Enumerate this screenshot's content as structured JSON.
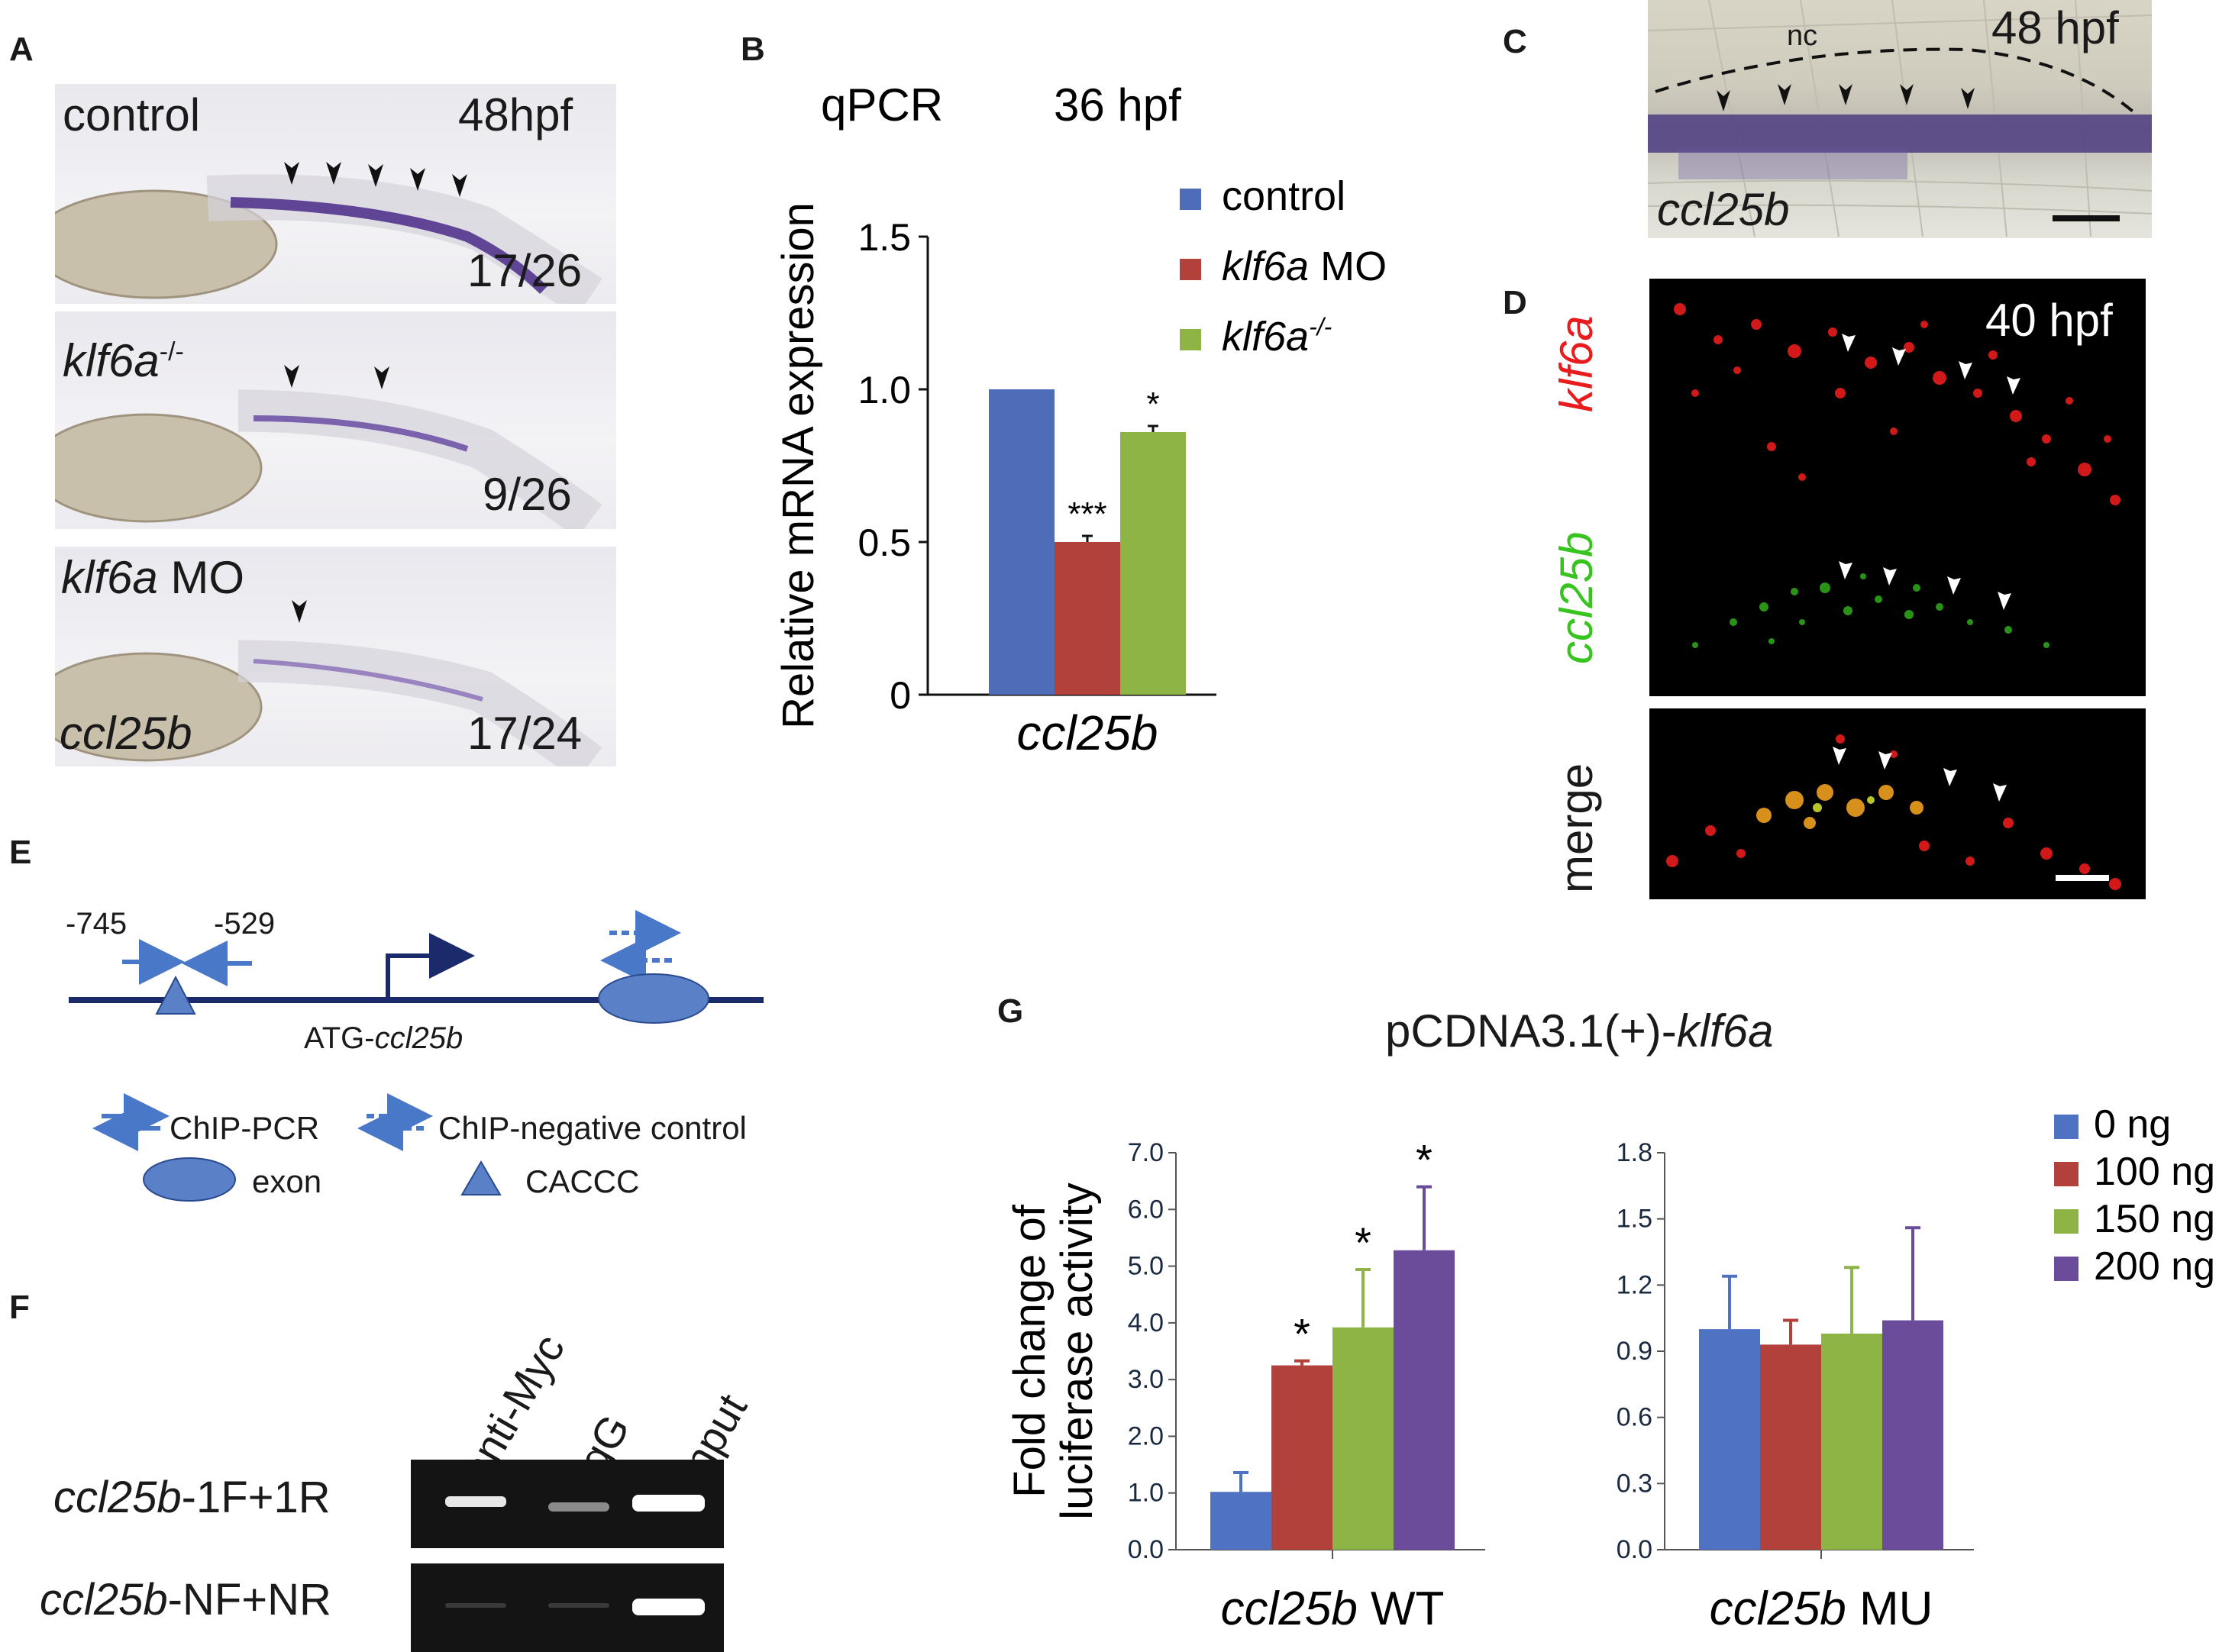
{
  "panelA": {
    "label": "A",
    "images": [
      {
        "genotype": "control",
        "stage": "48hpf",
        "count": "17/26"
      },
      {
        "genotype": "klf6a",
        "genotype_sup": "-/-",
        "count": "9/26"
      },
      {
        "genotype": "klf6a",
        "genotype_suffix": " MO",
        "gene": "ccl25b",
        "count": "17/24"
      }
    ]
  },
  "panelB": {
    "label": "B",
    "method": "qPCR",
    "stage": "36 hpf"
  },
  "panelC": {
    "label": "C",
    "stage": "48 hpf",
    "nc_label": "nc",
    "gene": "ccl25b"
  },
  "panelD": {
    "label": "D",
    "stage": "40 hpf",
    "rows": [
      "klf6a",
      "ccl25b",
      "merge"
    ],
    "colors": {
      "red": "#e81c1c",
      "green": "#37c41f"
    }
  },
  "panelE": {
    "label": "E",
    "pos1": "-745",
    "pos2": "-529",
    "gene_label_prefix": "ATG-",
    "gene_label": "ccl25b",
    "legend": {
      "chip_pcr": "ChIP-PCR",
      "chip_neg": "ChIP-negative control",
      "exon": "exon",
      "caccc": "CACCC"
    }
  },
  "panelF": {
    "label": "F",
    "lanes": [
      "anti-Myc",
      "IgG",
      "input"
    ],
    "rows": [
      {
        "gene": "ccl25b",
        "suffix": "-1F+1R"
      },
      {
        "gene": "ccl25b",
        "suffix": "-NF+NR"
      }
    ]
  },
  "panelG": {
    "label": "G",
    "construct_prefix": "pCDNA3.1(+)-",
    "construct_gene": "klf6a"
  },
  "chart_data": [
    {
      "id": "B",
      "type": "bar",
      "title": "qPCR 36 hpf",
      "ylabel": "Relative mRNA expression",
      "xlabel": "ccl25b",
      "ylim": [
        0,
        1.5
      ],
      "yticks": [
        "0",
        "0.5",
        "1.0",
        "1.5"
      ],
      "series": [
        {
          "name": "control",
          "value": 1.0,
          "error": 0,
          "color": "#4f6cb8",
          "sig": ""
        },
        {
          "name": "klf6a MO",
          "value": 0.5,
          "error": 0.02,
          "color": "#b2413c",
          "sig": "***"
        },
        {
          "name": "klf6a-/-",
          "value": 0.86,
          "error": 0.02,
          "color": "#8db444",
          "sig": "*"
        }
      ],
      "legend": [
        "control",
        "klf6a MO",
        "klf6a-/-"
      ]
    },
    {
      "id": "G-WT",
      "type": "bar",
      "ylabel_lines": [
        "Fold change of",
        "luciferase activity"
      ],
      "xlabel_gene": "ccl25b",
      "xlabel_suffix": " WT",
      "ylim": [
        0,
        7.0
      ],
      "yticks": [
        "0.0",
        "1.0",
        "2.0",
        "3.0",
        "4.0",
        "5.0",
        "6.0",
        "7.0"
      ],
      "series": [
        {
          "name": "0 ng",
          "value": 1.02,
          "error": 0.34,
          "color": "#4f72c2",
          "sig": ""
        },
        {
          "name": "100 ng",
          "value": 3.25,
          "error": 0.08,
          "color": "#b2413c",
          "sig": "*"
        },
        {
          "name": "150 ng",
          "value": 3.92,
          "error": 1.02,
          "color": "#8db444",
          "sig": "*"
        },
        {
          "name": "200 ng",
          "value": 5.28,
          "error": 1.12,
          "color": "#6b4c9a",
          "sig": "*"
        }
      ]
    },
    {
      "id": "G-MU",
      "type": "bar",
      "xlabel_gene": "ccl25b",
      "xlabel_suffix": " MU",
      "ylim": [
        0,
        1.8
      ],
      "yticks": [
        "0.0",
        "0.3",
        "0.6",
        "0.9",
        "1.2",
        "1.5",
        "1.8"
      ],
      "series": [
        {
          "name": "0 ng",
          "value": 1.0,
          "error": 0.24,
          "color": "#4f72c2",
          "sig": ""
        },
        {
          "name": "100 ng",
          "value": 0.93,
          "error": 0.11,
          "color": "#b2413c",
          "sig": ""
        },
        {
          "name": "150 ng",
          "value": 0.98,
          "error": 0.3,
          "color": "#8db444",
          "sig": ""
        },
        {
          "name": "200 ng",
          "value": 1.04,
          "error": 0.42,
          "color": "#6b4c9a",
          "sig": ""
        }
      ],
      "legend": [
        "0 ng",
        "100 ng",
        "150 ng",
        "200 ng"
      ]
    }
  ]
}
